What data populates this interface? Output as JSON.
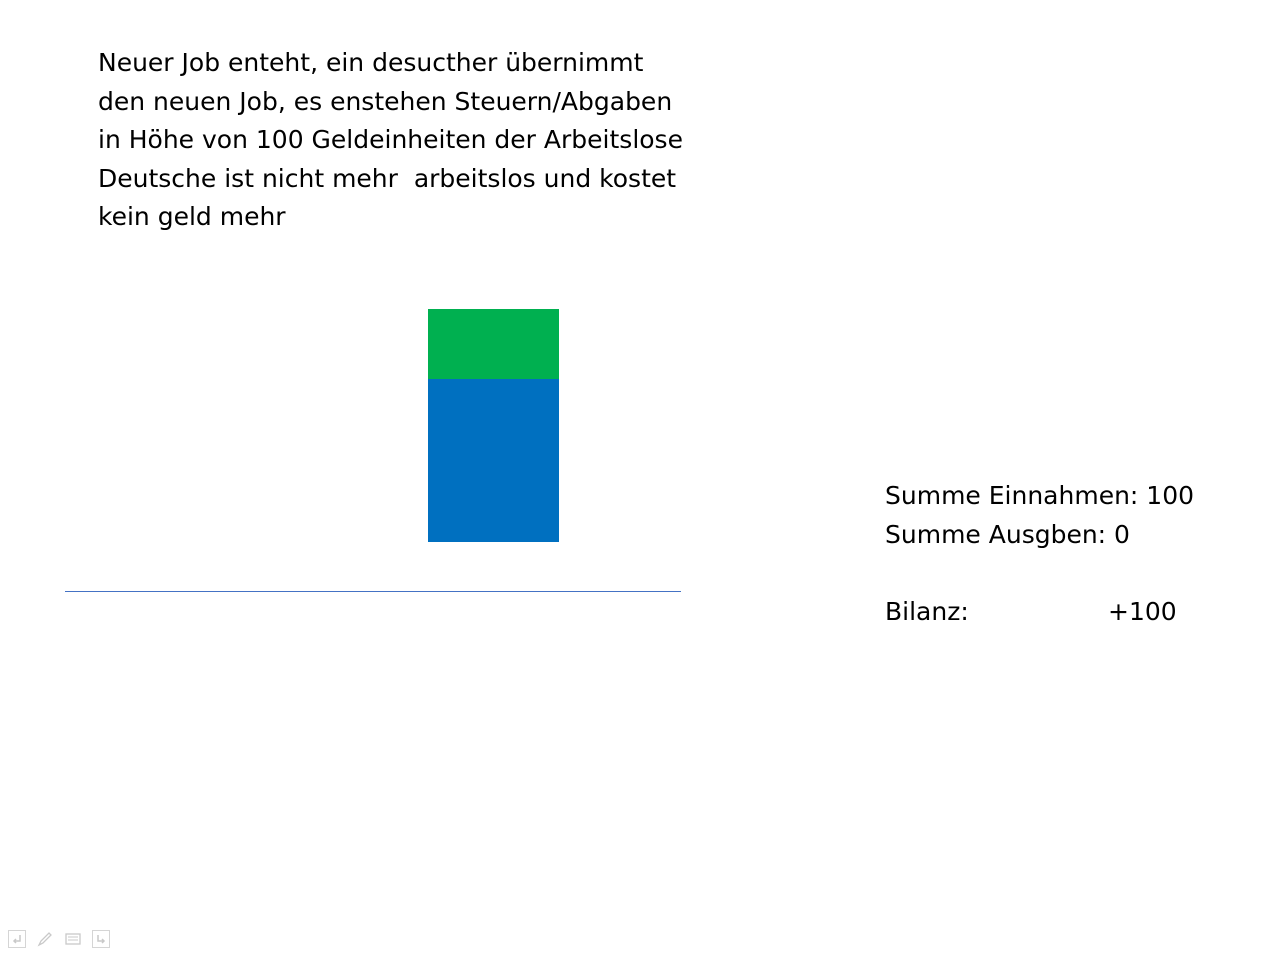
{
  "slide": {
    "description_lines": [
      "Neuer Job enteht, ein desucther übernimmt",
      "den neuen Job, es enstehen Steuern/Abgaben",
      "in Höhe von 100 Geldeinheiten der Arbeitslose",
      "Deutsche ist nicht mehr  arbeitslos und kostet",
      "kein geld mehr"
    ],
    "summary": {
      "einnahmen": "Summe Einnahmen: 100",
      "ausgaben": "Summe Ausgben: 0",
      "bilanz_label": "Bilanz:",
      "bilanz_value": "+100"
    }
  },
  "colors": {
    "green_segment": "#00B050",
    "blue_segment": "#0070C0",
    "baseline": "#4472C4"
  },
  "nav": {
    "icons": [
      "back-arrow-icon",
      "pen-icon",
      "menu-icon",
      "forward-arrow-icon"
    ]
  }
}
